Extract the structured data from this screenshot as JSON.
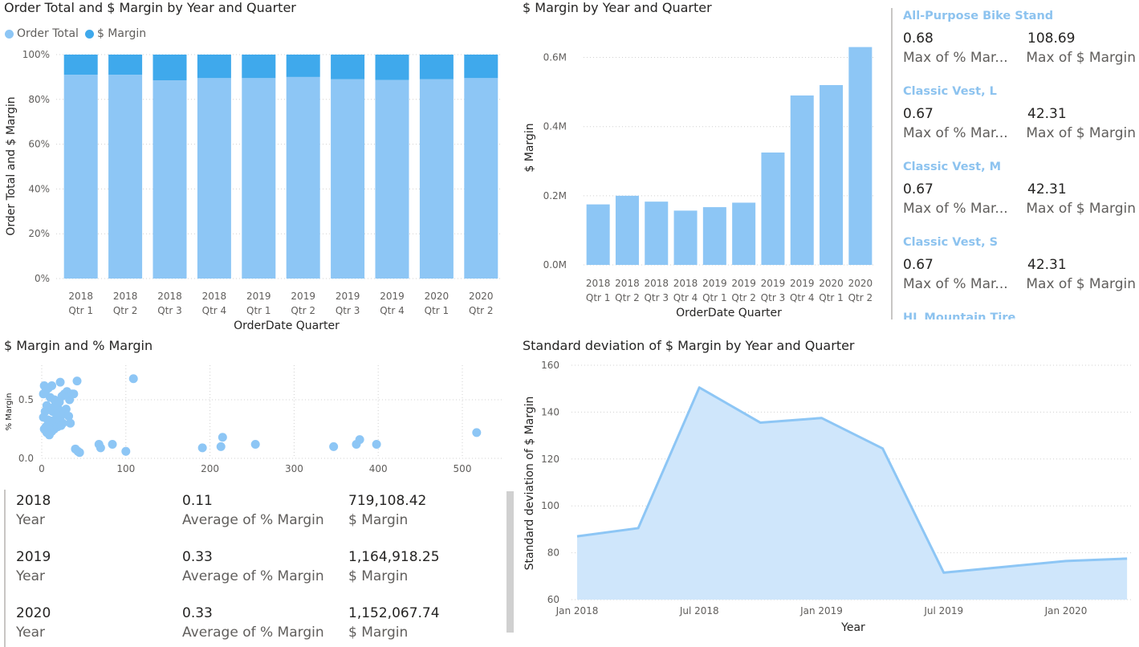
{
  "chart1": {
    "title": "Order Total and $ Margin by Year and Quarter",
    "legend": [
      {
        "name": "Order Total",
        "color": "#8dc6f5"
      },
      {
        "name": "$ Margin",
        "color": "#3fa9ec"
      }
    ],
    "chart_data": {
      "type": "bar",
      "stacked": "100%",
      "categories": [
        [
          "2018",
          "Qtr 1"
        ],
        [
          "2018",
          "Qtr 2"
        ],
        [
          "2018",
          "Qtr 3"
        ],
        [
          "2018",
          "Qtr 4"
        ],
        [
          "2019",
          "Qtr 1"
        ],
        [
          "2019",
          "Qtr 2"
        ],
        [
          "2019",
          "Qtr 3"
        ],
        [
          "2019",
          "Qtr 4"
        ],
        [
          "2020",
          "Qtr 1"
        ],
        [
          "2020",
          "Qtr 2"
        ]
      ],
      "series": [
        {
          "name": "Order Total",
          "values": [
            91,
            91,
            88.5,
            89.5,
            89.5,
            90,
            89,
            88.7,
            89,
            89.5
          ]
        },
        {
          "name": "$ Margin",
          "values": [
            9,
            9,
            11.5,
            10.5,
            10.5,
            10,
            11,
            11.3,
            11,
            10.5
          ]
        }
      ],
      "yticks": [
        "0%",
        "20%",
        "40%",
        "60%",
        "80%",
        "100%"
      ],
      "ylim": [
        0,
        100
      ],
      "xlabel": "OrderDate Quarter",
      "ylabel": "Order Total and $ Margin"
    }
  },
  "chart2": {
    "title": "$ Margin by Year and Quarter",
    "chart_data": {
      "type": "bar",
      "categories": [
        [
          "2018",
          "Qtr 1"
        ],
        [
          "2018",
          "Qtr 2"
        ],
        [
          "2018",
          "Qtr 3"
        ],
        [
          "2018",
          "Qtr 4"
        ],
        [
          "2019",
          "Qtr 1"
        ],
        [
          "2019",
          "Qtr 2"
        ],
        [
          "2019",
          "Qtr 3"
        ],
        [
          "2019",
          "Qtr 4"
        ],
        [
          "2020",
          "Qtr 1"
        ],
        [
          "2020",
          "Qtr 2"
        ]
      ],
      "values": [
        0.175,
        0.2,
        0.183,
        0.157,
        0.167,
        0.18,
        0.325,
        0.49,
        0.52,
        0.63
      ],
      "unit": "M",
      "yticks": [
        "0.0M",
        "0.2M",
        "0.4M",
        "0.6M"
      ],
      "ylim": [
        0,
        0.65
      ],
      "xlabel": "OrderDate Quarter",
      "ylabel": "$ Margin",
      "color": "#8dc6f5"
    }
  },
  "cards": [
    {
      "name": "All-Purpose Bike Stand",
      "pct": "0.68",
      "pct_label": "Max of % Mar...",
      "margin": "108.69",
      "margin_label": "Max of $ Margin"
    },
    {
      "name": "Classic Vest, L",
      "pct": "0.67",
      "pct_label": "Max of % Mar...",
      "margin": "42.31",
      "margin_label": "Max of $ Margin"
    },
    {
      "name": "Classic Vest, M",
      "pct": "0.67",
      "pct_label": "Max of % Mar...",
      "margin": "42.31",
      "margin_label": "Max of $ Margin"
    },
    {
      "name": "Classic Vest, S",
      "pct": "0.67",
      "pct_label": "Max of % Mar...",
      "margin": "42.31",
      "margin_label": "Max of $ Margin"
    },
    {
      "name": "HL Mountain Tire",
      "pct": "",
      "pct_label": "",
      "margin": "",
      "margin_label": ""
    }
  ],
  "chart3": {
    "title": "$ Margin and % Margin",
    "chart_data": {
      "type": "scatter",
      "xlabel": "",
      "ylabel": "% Margin",
      "xticks": [
        "0",
        "100",
        "200",
        "300",
        "400",
        "500"
      ],
      "yticks": [
        "0.0",
        "0.5"
      ],
      "xlim": [
        0,
        550
      ],
      "ylim": [
        0,
        0.72
      ],
      "color": "#8dc6f5",
      "points": [
        [
          3,
          0.62
        ],
        [
          5,
          0.58
        ],
        [
          8,
          0.6
        ],
        [
          2,
          0.55
        ],
        [
          10,
          0.52
        ],
        [
          12,
          0.62
        ],
        [
          15,
          0.5
        ],
        [
          6,
          0.45
        ],
        [
          9,
          0.43
        ],
        [
          4,
          0.4
        ],
        [
          13,
          0.4
        ],
        [
          17,
          0.38
        ],
        [
          20,
          0.42
        ],
        [
          2,
          0.35
        ],
        [
          7,
          0.33
        ],
        [
          11,
          0.32
        ],
        [
          14,
          0.3
        ],
        [
          18,
          0.35
        ],
        [
          22,
          0.33
        ],
        [
          25,
          0.3
        ],
        [
          3,
          0.25
        ],
        [
          6,
          0.22
        ],
        [
          9,
          0.2
        ],
        [
          12,
          0.23
        ],
        [
          15,
          0.25
        ],
        [
          19,
          0.27
        ],
        [
          23,
          0.28
        ],
        [
          27,
          0.55
        ],
        [
          30,
          0.57
        ],
        [
          33,
          0.5
        ],
        [
          36,
          0.55
        ],
        [
          26,
          0.38
        ],
        [
          29,
          0.42
        ],
        [
          32,
          0.36
        ],
        [
          34,
          0.3
        ],
        [
          38,
          0.55
        ],
        [
          42,
          0.66
        ],
        [
          22,
          0.65
        ],
        [
          24,
          0.53
        ],
        [
          5,
          0.27
        ],
        [
          8,
          0.28
        ],
        [
          16,
          0.45
        ],
        [
          21,
          0.48
        ],
        [
          40,
          0.08
        ],
        [
          43,
          0.06
        ],
        [
          45,
          0.05
        ],
        [
          68,
          0.12
        ],
        [
          70,
          0.09
        ],
        [
          84,
          0.12
        ],
        [
          100,
          0.06
        ],
        [
          109,
          0.68
        ],
        [
          191,
          0.09
        ],
        [
          213,
          0.1
        ],
        [
          215,
          0.18
        ],
        [
          254,
          0.12
        ],
        [
          347,
          0.1
        ],
        [
          374,
          0.12
        ],
        [
          378,
          0.16
        ],
        [
          398,
          0.12
        ],
        [
          517,
          0.22
        ]
      ]
    }
  },
  "yeartable": {
    "rows": [
      {
        "year": "2018",
        "year_label": "Year",
        "avg": "0.11",
        "avg_label": "Average of % Margin",
        "margin": "719,108.42",
        "margin_label": "$ Margin"
      },
      {
        "year": "2019",
        "year_label": "Year",
        "avg": "0.33",
        "avg_label": "Average of % Margin",
        "margin": "1,164,918.25",
        "margin_label": "$ Margin"
      },
      {
        "year": "2020",
        "year_label": "Year",
        "avg": "0.33",
        "avg_label": "Average of % Margin",
        "margin": "1,152,067.74",
        "margin_label": "$ Margin"
      }
    ]
  },
  "chart4": {
    "title": "Standard deviation of $ Margin by Year and Quarter",
    "chart_data": {
      "type": "area",
      "xlabel": "Year",
      "ylabel": "Standard deviation of $ Margin",
      "x": [
        "2018-01",
        "2018-04",
        "2018-07",
        "2018-10",
        "2019-01",
        "2019-04",
        "2019-07",
        "2019-10",
        "2020-01",
        "2020-04"
      ],
      "values": [
        87,
        90.5,
        150.5,
        135.5,
        137.5,
        124.5,
        71.5,
        74,
        76.5,
        77.5
      ],
      "xticks": [
        "Jan 2018",
        "Jul 2018",
        "Jan 2019",
        "Jul 2019",
        "Jan 2020"
      ],
      "yticks": [
        "60",
        "80",
        "100",
        "120",
        "140",
        "160"
      ],
      "ylim": [
        60,
        160
      ],
      "color": "#8dc6f5"
    }
  }
}
